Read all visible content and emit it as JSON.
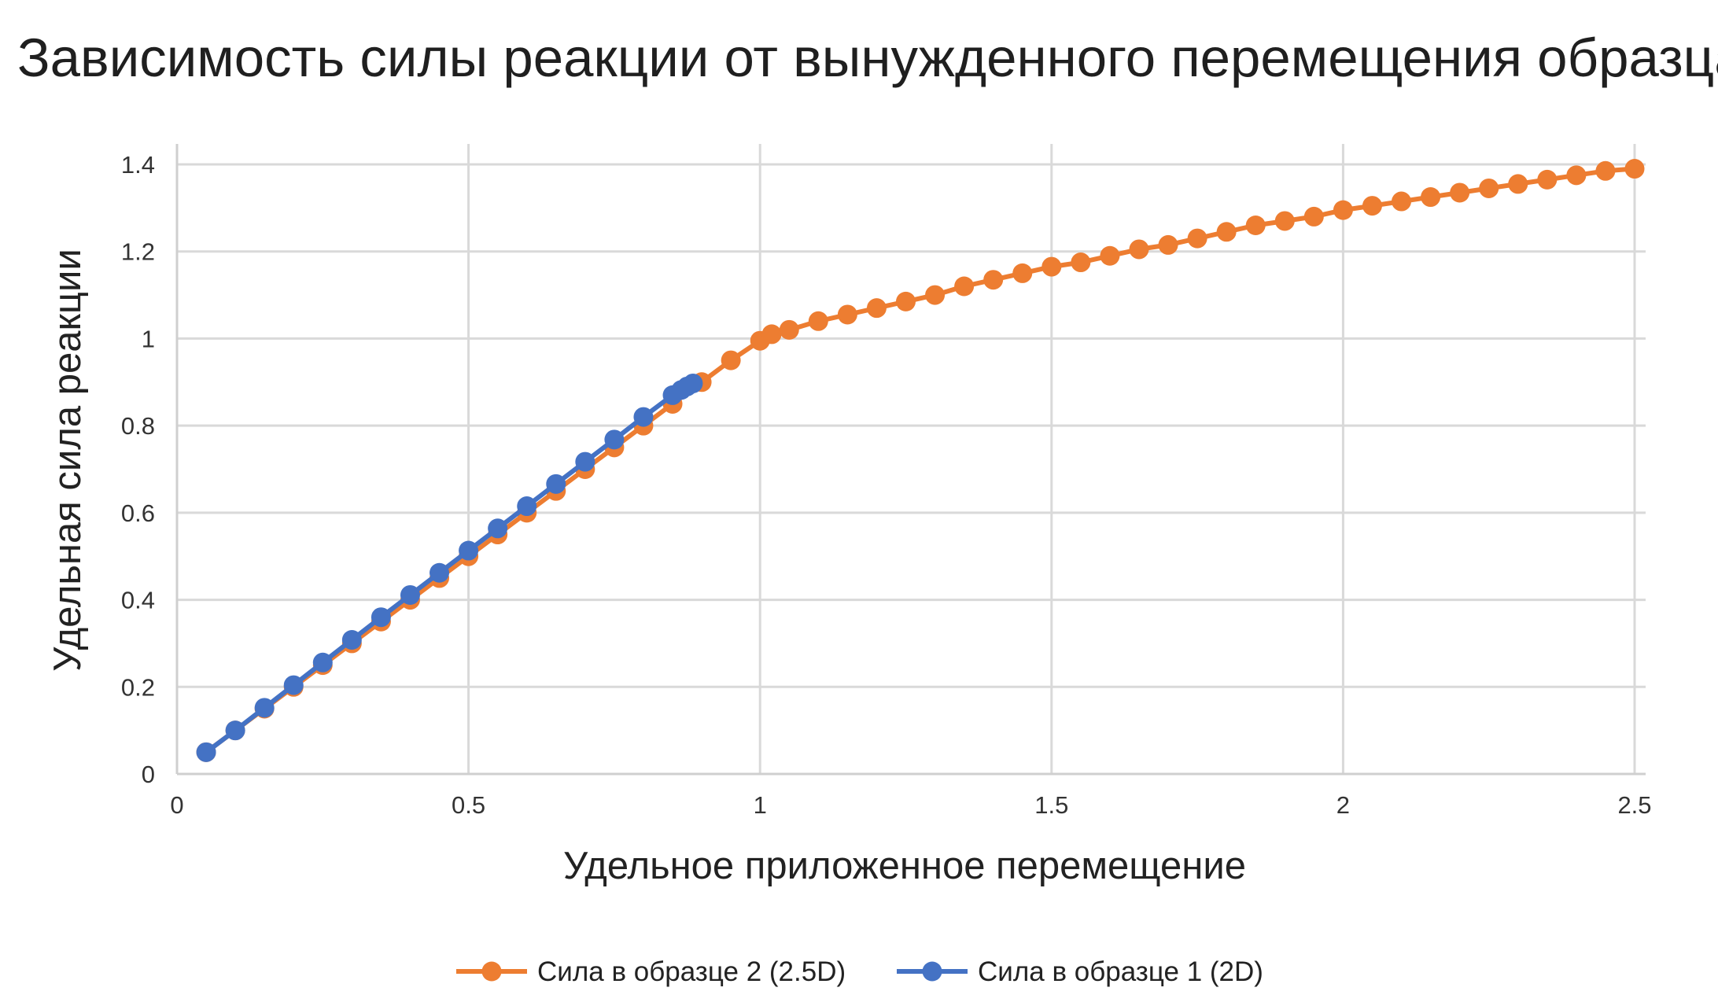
{
  "chart_data": {
    "type": "line",
    "title": "Зависимость силы реакции от вынужденного перемещения образца",
    "xlabel": "Удельное приложенное перемещение",
    "ylabel": "Удельная сила реакции",
    "xlim": [
      0,
      2.5
    ],
    "ylim": [
      0,
      1.4
    ],
    "x_ticks": [
      0,
      0.5,
      1,
      1.5,
      2,
      2.5
    ],
    "x_tick_labels": [
      "0",
      "0.5",
      "1",
      "1.5",
      "2",
      "2.5"
    ],
    "y_ticks": [
      0,
      0.2,
      0.4,
      0.6,
      0.8,
      1,
      1.2,
      1.4
    ],
    "y_tick_labels": [
      "0",
      "0.2",
      "0.4",
      "0.6",
      "0.8",
      "1",
      "1.2",
      "1.4"
    ],
    "grid": true,
    "legend_position": "bottom-center",
    "series": [
      {
        "name": "Сила в образце 2 (2.5D)",
        "color": "#ED7D31",
        "x": [
          0.05,
          0.1,
          0.15,
          0.2,
          0.25,
          0.3,
          0.35,
          0.4,
          0.45,
          0.5,
          0.55,
          0.6,
          0.65,
          0.7,
          0.75,
          0.8,
          0.85,
          0.9,
          0.95,
          1.0,
          1.02,
          1.05,
          1.1,
          1.15,
          1.2,
          1.25,
          1.3,
          1.35,
          1.4,
          1.45,
          1.5,
          1.55,
          1.6,
          1.65,
          1.7,
          1.75,
          1.8,
          1.85,
          1.9,
          1.95,
          2.0,
          2.05,
          2.1,
          2.15,
          2.2,
          2.25,
          2.3,
          2.35,
          2.4,
          2.45,
          2.5
        ],
        "y": [
          0.05,
          0.1,
          0.15,
          0.2,
          0.25,
          0.3,
          0.35,
          0.4,
          0.45,
          0.5,
          0.55,
          0.6,
          0.65,
          0.7,
          0.75,
          0.8,
          0.85,
          0.9,
          0.95,
          0.995,
          1.01,
          1.02,
          1.04,
          1.055,
          1.07,
          1.085,
          1.1,
          1.12,
          1.135,
          1.15,
          1.165,
          1.175,
          1.19,
          1.205,
          1.215,
          1.23,
          1.245,
          1.26,
          1.27,
          1.28,
          1.295,
          1.305,
          1.315,
          1.325,
          1.335,
          1.345,
          1.355,
          1.365,
          1.375,
          1.385,
          1.39
        ]
      },
      {
        "name": "Сила в образце 1 (2D)",
        "color": "#4472C4",
        "x": [
          0.05,
          0.1,
          0.15,
          0.2,
          0.25,
          0.3,
          0.35,
          0.4,
          0.45,
          0.5,
          0.55,
          0.6,
          0.65,
          0.7,
          0.75,
          0.8,
          0.85,
          0.865,
          0.875,
          0.885
        ],
        "y": [
          0.05,
          0.1,
          0.152,
          0.204,
          0.256,
          0.308,
          0.36,
          0.411,
          0.462,
          0.513,
          0.564,
          0.615,
          0.666,
          0.717,
          0.768,
          0.82,
          0.87,
          0.882,
          0.89,
          0.897
        ]
      }
    ]
  }
}
